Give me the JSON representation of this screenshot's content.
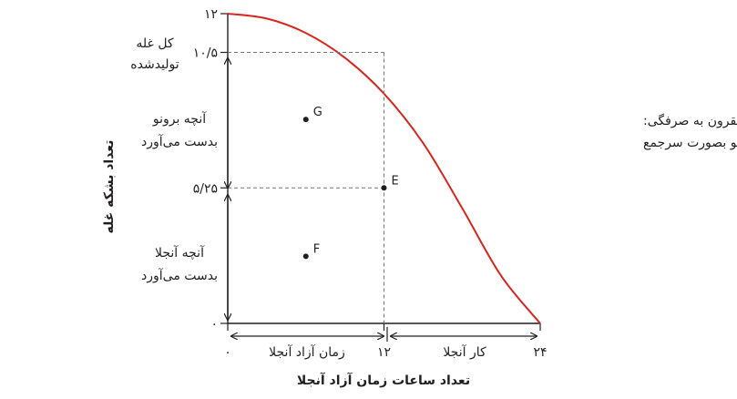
{
  "chart_data": {
    "type": "line",
    "xlabel": "تعداد ساعات زمان آزاد آنجلا",
    "ylabel": "تعداد بشکه غله",
    "xlim": [
      0,
      24
    ],
    "ylim": [
      0,
      12
    ],
    "x_ticks": [
      {
        "value": 0,
        "label": "۰"
      },
      {
        "value": 12,
        "label": "۱۲"
      },
      {
        "value": 24,
        "label": "۲۴"
      }
    ],
    "y_ticks": [
      {
        "value": 0,
        "label": "۰"
      },
      {
        "value": 5.25,
        "label": "۵/۲۵"
      },
      {
        "value": 10.5,
        "label": "۱۰/۵"
      },
      {
        "value": 12,
        "label": "۱۲"
      }
    ],
    "frontier": {
      "label_line1": "مرز مقرون به صرفگی:",
      "label_line2": "آنجلا و برونو بصورت سرجمع",
      "color": "#d7261e",
      "points": [
        {
          "x": 0,
          "y": 12
        },
        {
          "x": 3,
          "y": 11.81
        },
        {
          "x": 6,
          "y": 11.25
        },
        {
          "x": 9,
          "y": 10.29
        },
        {
          "x": 12,
          "y": 8.9
        },
        {
          "x": 15,
          "y": 6.99
        },
        {
          "x": 18,
          "y": 4.47
        },
        {
          "x": 21,
          "y": 1.84
        },
        {
          "x": 24,
          "y": 0
        }
      ]
    },
    "points": [
      {
        "label": "G",
        "x": 6,
        "y": 7.9
      },
      {
        "label": "E",
        "x": 12,
        "y": 5.25
      },
      {
        "label": "F",
        "x": 6,
        "y": 2.6
      }
    ],
    "guides": [
      {
        "x": 12,
        "y": 10.5
      },
      {
        "x": 12,
        "y": 5.25
      }
    ],
    "brackets": {
      "total_grain_line1": "کل غله",
      "total_grain_line2": "تولیدشده",
      "bruno_line1": "آنچه برونو",
      "bruno_line2": "بدست می‌آورد",
      "angela_line1": "آنچه آنجلا",
      "angela_line2": "بدست می‌آورد",
      "free_time": "زمان آزاد آنجلا",
      "work": "کار آنجلا"
    }
  }
}
